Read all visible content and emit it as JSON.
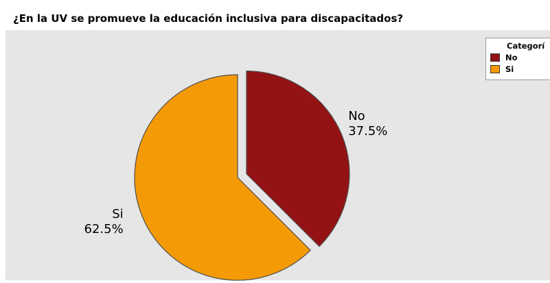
{
  "chart_data": {
    "type": "pie",
    "title": "¿En la UV se promueve la educación inclusiva para discapacitados?",
    "slices": [
      {
        "name": "No",
        "value": 37.5,
        "label": "37.5%",
        "color": "#931315"
      },
      {
        "name": "Si",
        "value": 62.5,
        "label": "62.5%",
        "color": "#f59a07"
      }
    ],
    "legend": {
      "title": "Categorí",
      "position": "top-right",
      "items": [
        {
          "name": "No",
          "color": "#931315"
        },
        {
          "name": "Si",
          "color": "#f59a07"
        }
      ]
    },
    "exploded": [
      "No"
    ],
    "background": "#e6e6e6"
  }
}
